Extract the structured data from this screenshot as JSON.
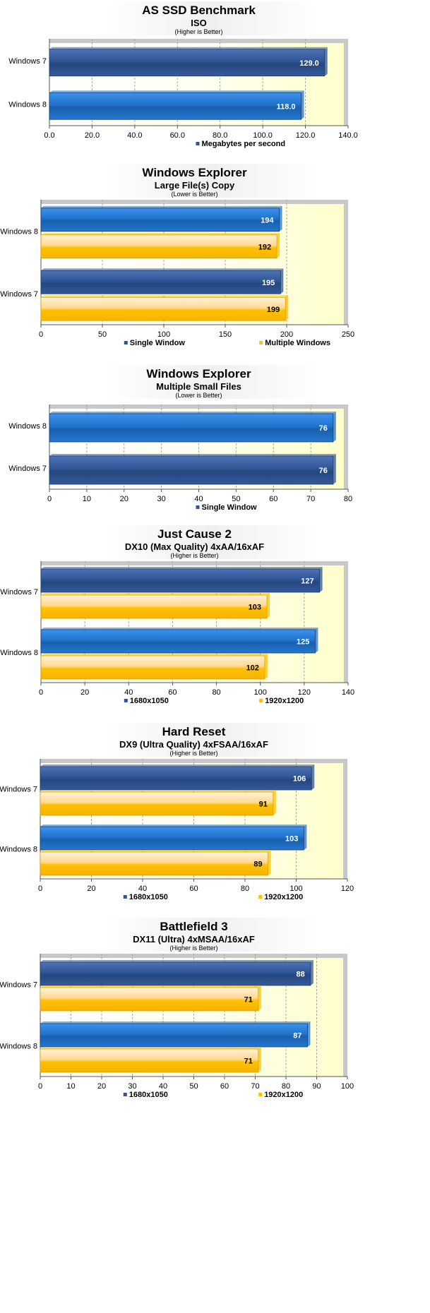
{
  "colors": {
    "series_dark_blue": "#2f5596",
    "series_bright_blue": "#1f73cc",
    "series_orange": "#ffc000",
    "plot_background": "#ffffe0",
    "text": "#000000"
  },
  "chart_data": [
    {
      "type": "bar",
      "orientation": "horizontal",
      "title": "AS SSD Benchmark",
      "subtitle": "ISO",
      "note": "(Higher is Better)",
      "categories": [
        "Windows 7",
        "Windows 8"
      ],
      "bar_colors": [
        [
          "#2f5596"
        ],
        [
          "#1f73cc"
        ]
      ],
      "series": [
        {
          "name": "Megabytes per second",
          "values": [
            129.0,
            118.0
          ],
          "labels": [
            "129.0",
            "118.0"
          ],
          "legend_color": "#2f5596"
        }
      ],
      "xlim": [
        0,
        140
      ],
      "ticks": [
        "0.0",
        "20.0",
        "40.0",
        "60.0",
        "80.0",
        "100.0",
        "120.0",
        "140.0"
      ],
      "grid": true,
      "legend_position": "bottom"
    },
    {
      "type": "bar",
      "orientation": "horizontal",
      "title": "Windows Explorer",
      "subtitle": "Large File(s) Copy",
      "note": "(Lower is Better)",
      "categories": [
        "Windows 8",
        "Windows 7"
      ],
      "bar_colors": [
        [
          "#1f73cc",
          "#ffc000"
        ],
        [
          "#2f5596",
          "#ffc000"
        ]
      ],
      "series": [
        {
          "name": "Single Window",
          "values": [
            194,
            195
          ],
          "labels": [
            "194",
            "195"
          ],
          "legend_color": "#2f5596"
        },
        {
          "name": "Multiple Windows",
          "values": [
            192,
            199
          ],
          "labels": [
            "192",
            "199"
          ],
          "legend_color": "#ffc000"
        }
      ],
      "xlim": [
        0,
        250
      ],
      "ticks": [
        "0",
        "50",
        "100",
        "150",
        "200",
        "250"
      ],
      "grid": true,
      "legend_position": "bottom"
    },
    {
      "type": "bar",
      "orientation": "horizontal",
      "title": "Windows Explorer",
      "subtitle": "Multiple Small Files",
      "note": "(Lower is Better)",
      "categories": [
        "Windows 8",
        "Windows 7"
      ],
      "bar_colors": [
        [
          "#1f73cc"
        ],
        [
          "#2f5596"
        ]
      ],
      "series": [
        {
          "name": "Single Window",
          "values": [
            76,
            76
          ],
          "labels": [
            "76",
            "76"
          ],
          "legend_color": "#2f5596"
        }
      ],
      "xlim": [
        0,
        80
      ],
      "ticks": [
        "0",
        "10",
        "20",
        "30",
        "40",
        "50",
        "60",
        "70",
        "80"
      ],
      "grid": true,
      "legend_position": "bottom"
    },
    {
      "type": "bar",
      "orientation": "horizontal",
      "title": "Just Cause 2",
      "subtitle": "DX10 (Max Quality) 4xAA/16xAF",
      "note": "(Higher is Better)",
      "categories": [
        "Windows 7",
        "Windows 8"
      ],
      "bar_colors": [
        [
          "#2f5596",
          "#ffc000"
        ],
        [
          "#1f73cc",
          "#ffc000"
        ]
      ],
      "series": [
        {
          "name": "1680x1050",
          "values": [
            127,
            125
          ],
          "labels": [
            "127",
            "125"
          ],
          "legend_color": "#2f5596"
        },
        {
          "name": "1920x1200",
          "values": [
            103,
            102
          ],
          "labels": [
            "103",
            "102"
          ],
          "legend_color": "#ffc000"
        }
      ],
      "xlim": [
        0,
        140
      ],
      "ticks": [
        "0",
        "20",
        "40",
        "60",
        "80",
        "100",
        "120",
        "140"
      ],
      "grid": true,
      "legend_position": "bottom"
    },
    {
      "type": "bar",
      "orientation": "horizontal",
      "title": "Hard Reset",
      "subtitle": "DX9 (Ultra Quality) 4xFSAA/16xAF",
      "note": "(Higher is Better)",
      "categories": [
        "Windows 7",
        "Windows 8"
      ],
      "bar_colors": [
        [
          "#2f5596",
          "#ffc000"
        ],
        [
          "#1f73cc",
          "#ffc000"
        ]
      ],
      "series": [
        {
          "name": "1680x1050",
          "values": [
            106,
            103
          ],
          "labels": [
            "106",
            "103"
          ],
          "legend_color": "#2f5596"
        },
        {
          "name": "1920x1200",
          "values": [
            91,
            89
          ],
          "labels": [
            "91",
            "89"
          ],
          "legend_color": "#ffc000"
        }
      ],
      "xlim": [
        0,
        120
      ],
      "ticks": [
        "0",
        "20",
        "40",
        "60",
        "80",
        "100",
        "120"
      ],
      "grid": true,
      "legend_position": "bottom"
    },
    {
      "type": "bar",
      "orientation": "horizontal",
      "title": "Battlefield 3",
      "subtitle": "DX11 (Ultra) 4xMSAA/16xAF",
      "note": "(Higher is Better)",
      "categories": [
        "Windows 7",
        "Windows 8"
      ],
      "bar_colors": [
        [
          "#2f5596",
          "#ffc000"
        ],
        [
          "#1f73cc",
          "#ffc000"
        ]
      ],
      "series": [
        {
          "name": "1680x1050",
          "values": [
            88,
            87
          ],
          "labels": [
            "88",
            "87"
          ],
          "legend_color": "#2f5596"
        },
        {
          "name": "1920x1200",
          "values": [
            71,
            71
          ],
          "labels": [
            "71",
            "71"
          ],
          "legend_color": "#ffc000"
        }
      ],
      "xlim": [
        0,
        100
      ],
      "ticks": [
        "0",
        "10",
        "20",
        "30",
        "40",
        "50",
        "60",
        "70",
        "80",
        "90",
        "100"
      ],
      "grid": true,
      "legend_position": "bottom"
    }
  ]
}
